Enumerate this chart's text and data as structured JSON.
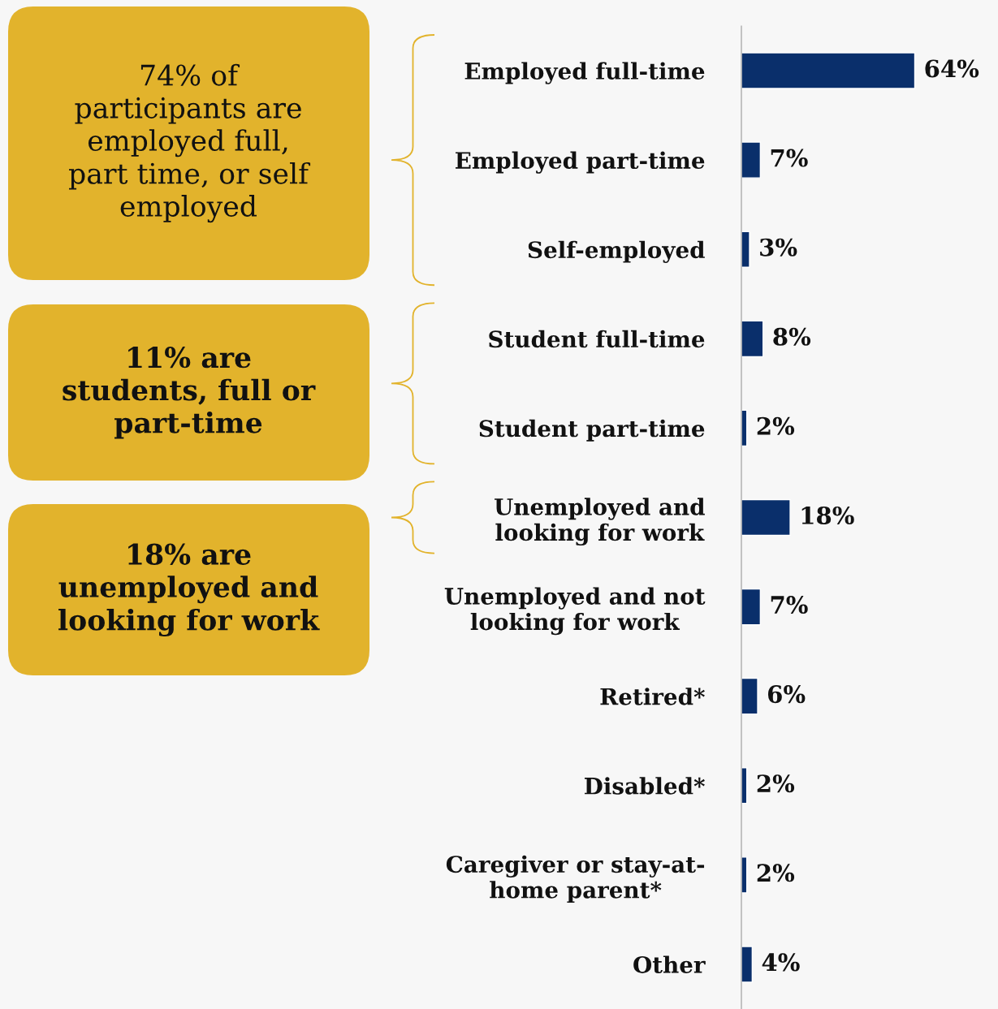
{
  "chart_data": {
    "type": "bar",
    "orientation": "horizontal",
    "categories": [
      "Employed full-time",
      "Employed part-time",
      "Self-employed",
      "Student full-time",
      "Student part-time",
      "Unemployed and\nlooking for work",
      "Unemployed and not\nlooking for work",
      "Retired*",
      "Disabled*",
      "Caregiver or stay-at-\nhome parent*",
      "Other"
    ],
    "values": [
      64,
      7,
      3,
      8,
      2,
      18,
      7,
      6,
      2,
      2,
      4
    ],
    "value_labels": [
      "64%",
      "7%",
      "3%",
      "8%",
      "2%",
      "18%",
      "7%",
      "6%",
      "2%",
      "2%",
      "4%"
    ],
    "color": "#0a2f6b",
    "annotations": [
      "74% of\nparticipants are\nemployed full,\npart time, or self\nemployed",
      "11% are\nstudents, full or\npart-time",
      "18% are\nunemployed and\nlooking for work"
    ],
    "grid": false
  }
}
